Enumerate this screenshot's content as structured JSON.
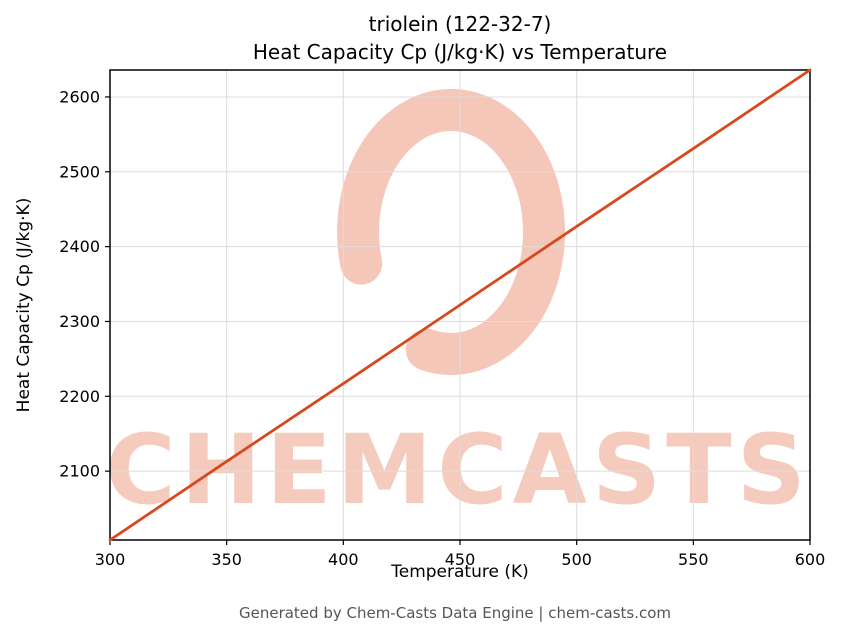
{
  "figure": {
    "title_line1": "triolein (122-32-7)",
    "title_line2": "Heat Capacity Cp (J/kg·K) vs Temperature",
    "xlabel": "Temperature (K)",
    "ylabel": "Heat Capacity Cp (J/kg·K)",
    "footer": "Generated by Chem-Casts Data Engine | chem-casts.com",
    "watermark_text": "CHEMCASTS"
  },
  "chart_data": {
    "type": "line",
    "title": "triolein (122-32-7) — Heat Capacity Cp (J/kg·K) vs Temperature",
    "xlabel": "Temperature (K)",
    "ylabel": "Heat Capacity Cp (J/kg·K)",
    "series": [
      {
        "name": "Cp",
        "x": [
          300,
          350,
          400,
          450,
          500,
          550,
          600
        ],
        "y": [
          2008,
          2113,
          2217,
          2322,
          2427,
          2531,
          2636
        ]
      }
    ],
    "xlim": [
      300,
      600
    ],
    "ylim": [
      2008,
      2636
    ],
    "xticks": [
      300,
      350,
      400,
      450,
      500,
      550,
      600
    ],
    "yticks": [
      2100,
      2200,
      2300,
      2400,
      2500,
      2600
    ],
    "grid": true,
    "legend": "none",
    "line_color": "#d9491f",
    "grid_color": "#dcdcdc",
    "axis_color": "#000000",
    "watermark_color": "#e0552a"
  }
}
